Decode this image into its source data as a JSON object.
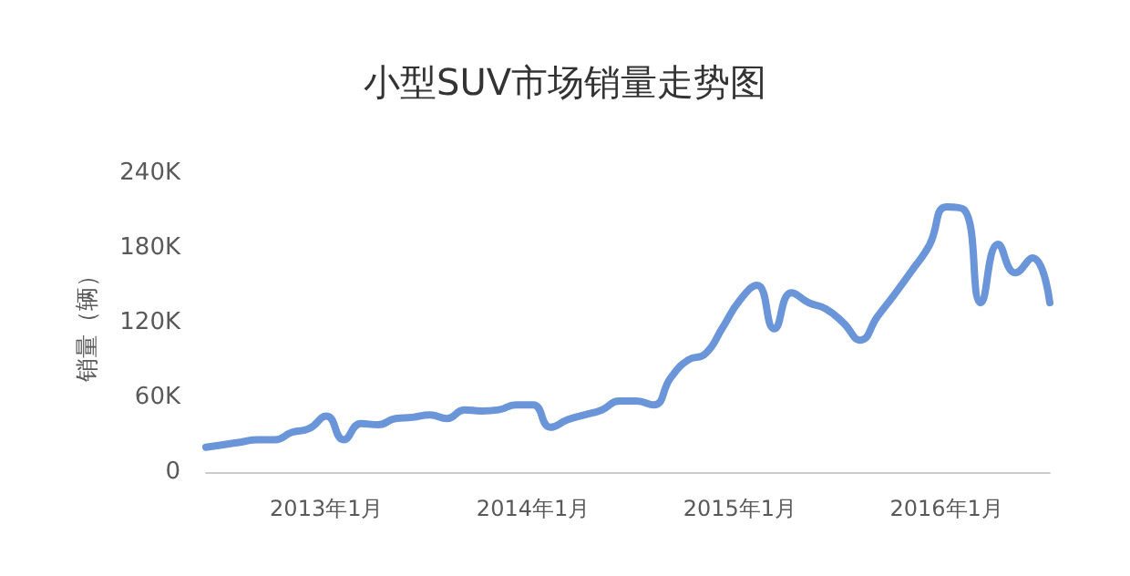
{
  "chart_data": {
    "type": "line",
    "title": "小型SUV市场销量走势图",
    "ylabel": "销量（辆）",
    "categories": [
      null,
      null,
      null,
      null,
      null,
      null,
      null,
      "2013年1月",
      null,
      null,
      null,
      null,
      null,
      null,
      null,
      null,
      null,
      null,
      null,
      "2014年1月",
      null,
      null,
      null,
      null,
      null,
      null,
      null,
      null,
      null,
      null,
      null,
      "2015年1月",
      null,
      null,
      null,
      null,
      null,
      null,
      null,
      null,
      null,
      null,
      null,
      "2016年1月",
      null,
      null,
      null,
      null,
      null,
      null
    ],
    "series": [
      {
        "color": "#6a95d8",
        "values": [
          20,
          22,
          24,
          26,
          26,
          32,
          35,
          45,
          26,
          39,
          38,
          43,
          44,
          46,
          43,
          50,
          49,
          50,
          54,
          54,
          36,
          42,
          46,
          50,
          57,
          57,
          54,
          76,
          90,
          95,
          116,
          138,
          150,
          115,
          144,
          136,
          131,
          120,
          106,
          125,
          143,
          162,
          182,
          213,
          211,
          136,
          183,
          160,
          172,
          136
        ]
      }
    ],
    "ylim": [
      0,
      240
    ],
    "yticks": [
      0,
      {
        "value": 60,
        "label": "60K"
      },
      {
        "value": 120,
        "label": "120K"
      },
      {
        "value": 180,
        "label": "180K"
      },
      {
        "value": 240,
        "label": "240K"
      }
    ],
    "grid": false,
    "marker": "none",
    "line_style": "solid"
  }
}
